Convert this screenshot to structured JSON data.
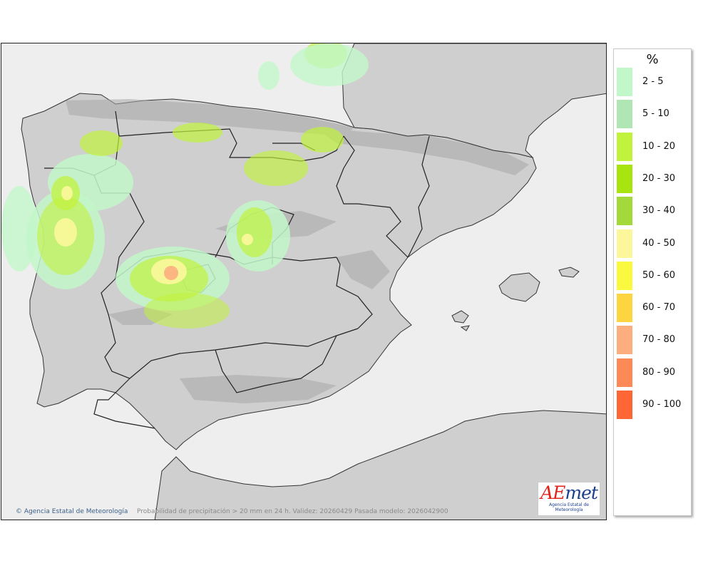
{
  "map": {
    "credit": "Agencia Estatal de Meteorología",
    "caption": "Probabilidad de precipitación > 20 mm en 24 h. Validez: 20260429 Pasada modelo: 2026042900",
    "logo_word_a": "AE",
    "logo_word_b": "met",
    "logo_subtitle": "Agencia Estatal de Meteorología",
    "colors": {
      "sea": "#eeeeee",
      "land": "#cfcfcf",
      "relief": "#a8a8a8",
      "border": "#222222"
    }
  },
  "legend": {
    "unit": "%",
    "items": [
      {
        "label": "2 - 5",
        "color": "#c2f7c9"
      },
      {
        "label": "5 - 10",
        "color": "#b0e6b3"
      },
      {
        "label": "10 - 20",
        "color": "#c1f23d"
      },
      {
        "label": "20 - 30",
        "color": "#a8e40f"
      },
      {
        "label": "30 - 40",
        "color": "#a4d93b"
      },
      {
        "label": "40 - 50",
        "color": "#fcf79b"
      },
      {
        "label": "50 - 60",
        "color": "#fbf93f"
      },
      {
        "label": "60 - 70",
        "color": "#fdd540"
      },
      {
        "label": "70 - 80",
        "color": "#fdae7f"
      },
      {
        "label": "80 - 90",
        "color": "#fd8957"
      },
      {
        "label": "90 - 100",
        "color": "#fe6635"
      }
    ]
  }
}
